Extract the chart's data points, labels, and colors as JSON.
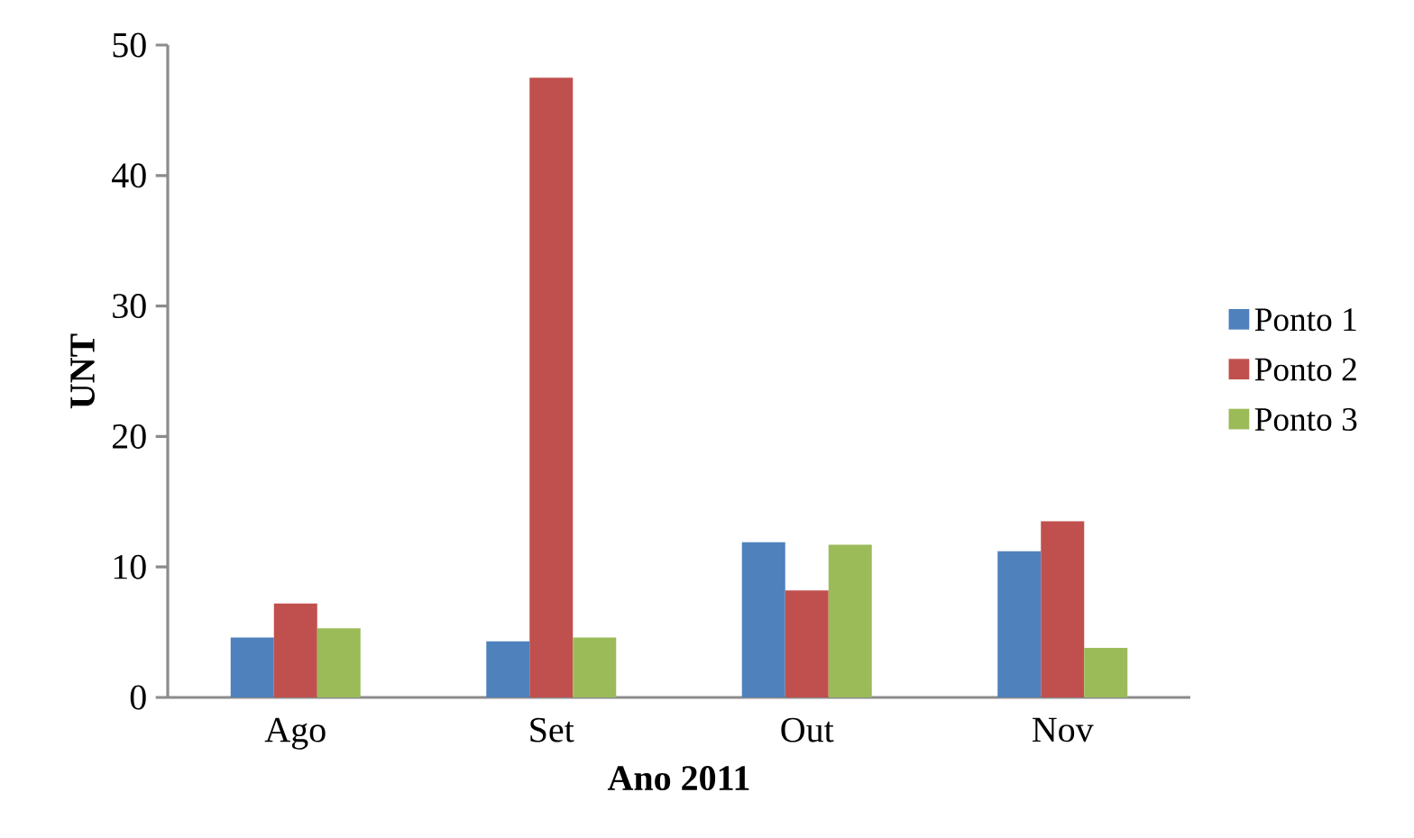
{
  "chart_data": {
    "type": "bar",
    "xlabel": "Ano 2011",
    "ylabel": "UNT",
    "categories": [
      "Ago",
      "Set",
      "Out",
      "Nov"
    ],
    "series": [
      {
        "name": "Ponto 1",
        "color": "#4f81bd",
        "values": [
          4.6,
          4.3,
          11.9,
          11.2
        ]
      },
      {
        "name": "Ponto 2",
        "color": "#c0504d",
        "values": [
          7.2,
          47.5,
          8.2,
          13.5
        ]
      },
      {
        "name": "Ponto 3",
        "color": "#9bbb59",
        "values": [
          5.3,
          4.6,
          11.7,
          3.8
        ]
      }
    ],
    "ylim": [
      0,
      50
    ],
    "yticks": [
      0,
      10,
      20,
      30,
      40,
      50
    ],
    "grid": false,
    "legend": "right"
  }
}
